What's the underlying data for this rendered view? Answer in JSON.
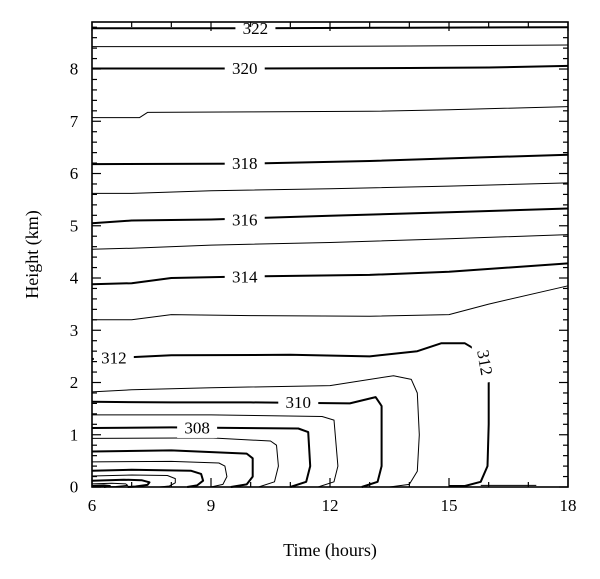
{
  "chart_data": {
    "type": "contour",
    "xlabel": "Time (hours)",
    "ylabel": "Height (km)",
    "xlim": [
      6,
      18
    ],
    "ylim": [
      0,
      8.9
    ],
    "xticks": [
      6,
      9,
      12,
      15,
      18
    ],
    "yticks": [
      0,
      1,
      2,
      3,
      4,
      5,
      6,
      7,
      8
    ],
    "grid": false,
    "contours": [
      {
        "level": 322,
        "labeled": true,
        "bold": true,
        "points": [
          [
            6,
            8.78
          ],
          [
            10,
            8.78
          ],
          [
            14,
            8.79
          ],
          [
            18,
            8.8
          ]
        ]
      },
      {
        "level": 321,
        "labeled": false,
        "bold": false,
        "points": [
          [
            6,
            8.43
          ],
          [
            10,
            8.43
          ],
          [
            14,
            8.44
          ],
          [
            18,
            8.46
          ]
        ]
      },
      {
        "level": 320,
        "labeled": true,
        "bold": true,
        "points": [
          [
            6,
            8.01
          ],
          [
            10,
            8.01
          ],
          [
            14,
            8.02
          ],
          [
            16,
            8.03
          ],
          [
            18,
            8.06
          ]
        ]
      },
      {
        "level": 319,
        "labeled": false,
        "bold": false,
        "points": [
          [
            6,
            7.07
          ],
          [
            7.2,
            7.07
          ],
          [
            7.4,
            7.17
          ],
          [
            10,
            7.18
          ],
          [
            13,
            7.19
          ],
          [
            15,
            7.22
          ],
          [
            18,
            7.28
          ]
        ]
      },
      {
        "level": 318,
        "labeled": true,
        "bold": true,
        "points": [
          [
            6,
            6.18
          ],
          [
            10,
            6.19
          ],
          [
            13,
            6.24
          ],
          [
            15.5,
            6.3
          ],
          [
            18,
            6.36
          ]
        ]
      },
      {
        "level": 317,
        "labeled": false,
        "bold": false,
        "points": [
          [
            6,
            5.62
          ],
          [
            7,
            5.62
          ],
          [
            9,
            5.67
          ],
          [
            12,
            5.71
          ],
          [
            15,
            5.76
          ],
          [
            18,
            5.82
          ]
        ]
      },
      {
        "level": 316,
        "labeled": true,
        "bold": true,
        "points": [
          [
            6,
            5.05
          ],
          [
            7,
            5.1
          ],
          [
            9,
            5.12
          ],
          [
            12,
            5.19
          ],
          [
            15,
            5.26
          ],
          [
            18,
            5.33
          ]
        ]
      },
      {
        "level": 315,
        "labeled": false,
        "bold": false,
        "points": [
          [
            6,
            4.55
          ],
          [
            7,
            4.57
          ],
          [
            9,
            4.63
          ],
          [
            12,
            4.68
          ],
          [
            15,
            4.75
          ],
          [
            18,
            4.83
          ]
        ]
      },
      {
        "level": 314,
        "labeled": true,
        "bold": true,
        "points": [
          [
            6,
            3.88
          ],
          [
            7,
            3.9
          ],
          [
            8,
            4.0
          ],
          [
            10,
            4.03
          ],
          [
            13,
            4.06
          ],
          [
            15,
            4.12
          ],
          [
            18,
            4.28
          ]
        ]
      },
      {
        "level": 313,
        "labeled": false,
        "bold": false,
        "points": [
          [
            6,
            3.2
          ],
          [
            7,
            3.2
          ],
          [
            8,
            3.3
          ],
          [
            10,
            3.28
          ],
          [
            13,
            3.27
          ],
          [
            15,
            3.3
          ],
          [
            16,
            3.5
          ],
          [
            18,
            3.85
          ]
        ]
      },
      {
        "level": 312,
        "labeled": true,
        "bold": true,
        "points": [
          [
            6,
            2.45
          ],
          [
            8,
            2.52
          ],
          [
            11,
            2.53
          ],
          [
            13,
            2.5
          ],
          [
            14.2,
            2.6
          ],
          [
            14.8,
            2.75
          ],
          [
            15.4,
            2.75
          ],
          [
            15.85,
            2.55
          ],
          [
            16.0,
            2.1
          ],
          [
            16.0,
            1.2
          ],
          [
            15.97,
            0.4
          ],
          [
            15.8,
            0.1
          ],
          [
            15.4,
            0.02
          ],
          [
            15,
            0.02
          ]
        ]
      },
      {
        "level": 311,
        "labeled": false,
        "bold": false,
        "points": [
          [
            6,
            1.82
          ],
          [
            7,
            1.86
          ],
          [
            9,
            1.9
          ],
          [
            12,
            1.94
          ],
          [
            13.6,
            2.13
          ],
          [
            14.05,
            2.06
          ],
          [
            14.2,
            1.8
          ],
          [
            14.25,
            1.0
          ],
          [
            14.2,
            0.3
          ],
          [
            14.0,
            0.05
          ],
          [
            13.5,
            0.0
          ]
        ]
      },
      {
        "level": 310,
        "labeled": true,
        "bold": true,
        "points": [
          [
            6,
            1.63
          ],
          [
            8,
            1.62
          ],
          [
            10,
            1.62
          ],
          [
            12.5,
            1.6
          ],
          [
            13.15,
            1.72
          ],
          [
            13.3,
            1.55
          ],
          [
            13.3,
            0.4
          ],
          [
            13.2,
            0.1
          ],
          [
            12.8,
            0.0
          ]
        ]
      },
      {
        "level": 309,
        "labeled": false,
        "bold": false,
        "points": [
          [
            6,
            1.38
          ],
          [
            9,
            1.38
          ],
          [
            11.8,
            1.35
          ],
          [
            12.1,
            1.28
          ],
          [
            12.2,
            0.4
          ],
          [
            12.1,
            0.1
          ],
          [
            11.7,
            0.0
          ]
        ]
      },
      {
        "level": 308,
        "labeled": true,
        "bold": true,
        "points": [
          [
            6,
            1.13
          ],
          [
            8,
            1.14
          ],
          [
            11.2,
            1.12
          ],
          [
            11.45,
            1.05
          ],
          [
            11.5,
            0.4
          ],
          [
            11.4,
            0.1
          ],
          [
            11.0,
            0.0
          ]
        ]
      },
      {
        "level": 307,
        "labeled": false,
        "bold": false,
        "points": [
          [
            6,
            0.93
          ],
          [
            9,
            0.94
          ],
          [
            10.5,
            0.88
          ],
          [
            10.65,
            0.8
          ],
          [
            10.7,
            0.4
          ],
          [
            10.6,
            0.1
          ],
          [
            10.2,
            0.0
          ]
        ]
      },
      {
        "level": 306,
        "labeled": false,
        "bold": true,
        "points": [
          [
            6,
            0.68
          ],
          [
            8,
            0.7
          ],
          [
            9.9,
            0.64
          ],
          [
            10.05,
            0.55
          ],
          [
            10.05,
            0.2
          ],
          [
            9.9,
            0.05
          ],
          [
            9.5,
            0.0
          ]
        ]
      },
      {
        "level": 305,
        "labeled": false,
        "bold": false,
        "points": [
          [
            6,
            0.48
          ],
          [
            8,
            0.49
          ],
          [
            9.2,
            0.46
          ],
          [
            9.35,
            0.4
          ],
          [
            9.4,
            0.2
          ],
          [
            9.3,
            0.05
          ],
          [
            9.0,
            0.0
          ]
        ]
      },
      {
        "level": 304,
        "labeled": false,
        "bold": true,
        "points": [
          [
            6,
            0.31
          ],
          [
            7,
            0.33
          ],
          [
            8.5,
            0.31
          ],
          [
            8.75,
            0.25
          ],
          [
            8.8,
            0.12
          ],
          [
            8.65,
            0.03
          ],
          [
            8.4,
            0.0
          ]
        ]
      },
      {
        "level": 303,
        "labeled": false,
        "bold": false,
        "points": [
          [
            6,
            0.21
          ],
          [
            7,
            0.23
          ],
          [
            7.9,
            0.22
          ],
          [
            8.1,
            0.16
          ],
          [
            8.1,
            0.08
          ],
          [
            7.95,
            0.02
          ],
          [
            7.7,
            0.0
          ]
        ]
      },
      {
        "level": 302,
        "labeled": false,
        "bold": true,
        "points": [
          [
            6,
            0.12
          ],
          [
            6.8,
            0.14
          ],
          [
            7.25,
            0.13
          ],
          [
            7.45,
            0.09
          ],
          [
            7.4,
            0.04
          ],
          [
            7.1,
            0.01
          ],
          [
            6.9,
            0.0
          ]
        ]
      },
      {
        "level": 301,
        "labeled": false,
        "bold": false,
        "points": [
          [
            6,
            0.06
          ],
          [
            6.5,
            0.07
          ],
          [
            6.85,
            0.06
          ],
          [
            6.9,
            0.03
          ],
          [
            6.6,
            0.01
          ],
          [
            6.3,
            0.0
          ]
        ]
      },
      {
        "level": 300,
        "labeled": false,
        "bold": true,
        "points": [
          [
            6,
            0.02
          ],
          [
            6.3,
            0.03
          ],
          [
            6.45,
            0.02
          ],
          [
            6.3,
            0.0
          ]
        ]
      },
      {
        "level": 312.5,
        "labeled": false,
        "bold": false,
        "points": [
          [
            15.8,
            0.03
          ],
          [
            17.2,
            0.03
          ]
        ]
      }
    ],
    "contour_labels": [
      {
        "text": "322",
        "x": 10.12,
        "y": 8.78,
        "rotate": 0
      },
      {
        "text": "320",
        "x": 9.85,
        "y": 8.01,
        "rotate": 0
      },
      {
        "text": "318",
        "x": 9.85,
        "y": 6.19,
        "rotate": 0
      },
      {
        "text": "316",
        "x": 9.85,
        "y": 5.11,
        "rotate": 0
      },
      {
        "text": "314",
        "x": 9.85,
        "y": 4.02,
        "rotate": 0
      },
      {
        "text": "312",
        "x": 6.55,
        "y": 2.47,
        "rotate": 0
      },
      {
        "text": "312",
        "x": 15.9,
        "y": 2.38,
        "rotate": 80
      },
      {
        "text": "310",
        "x": 11.2,
        "y": 1.62,
        "rotate": 0
      },
      {
        "text": "308",
        "x": 8.65,
        "y": 1.13,
        "rotate": 0
      }
    ]
  }
}
